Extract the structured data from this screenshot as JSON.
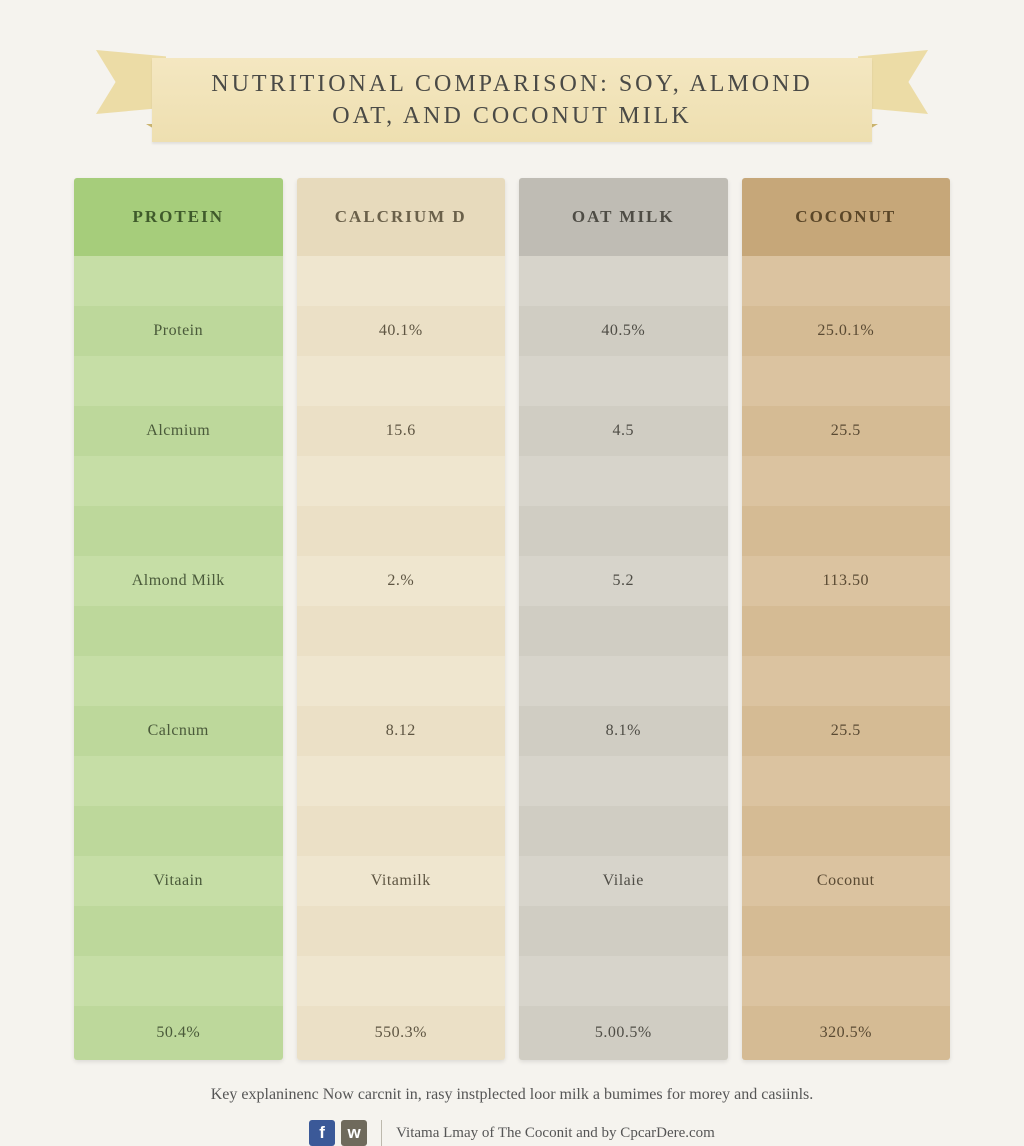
{
  "title": "NUTRITIONAL COMPARISON:  SOY, ALMOND\nOAT, AND COCONUT MILK",
  "columns": [
    {
      "header": "PROTEIN",
      "header_bg": "#a6cd7b",
      "header_color": "#3f5a2b",
      "stripe_a": "#c6dea6",
      "stripe_b": "#bdd89b",
      "text_color": "#4a5a3a",
      "cells": [
        "",
        "Protein",
        "",
        "Alcmium",
        "",
        "",
        "Almond Milk",
        "",
        "",
        "Calcnum",
        "",
        "",
        "Vitaain",
        "",
        "",
        "50.4%"
      ]
    },
    {
      "header": "CALCRIUM D",
      "header_bg": "#e7dabc",
      "header_color": "#6a604a",
      "stripe_a": "#efe6cf",
      "stripe_b": "#ebe0c6",
      "text_color": "#5e5542",
      "cells": [
        "",
        "40.1%",
        "",
        "15.6",
        "",
        "",
        "2.%",
        "",
        "",
        "8.12",
        "",
        "",
        "Vitamilk",
        "",
        "",
        "550.3%"
      ]
    },
    {
      "header": "OAT MILK",
      "header_bg": "#bfbcb4",
      "header_color": "#4e4c45",
      "stripe_a": "#d7d4cb",
      "stripe_b": "#d0cdc3",
      "text_color": "#4f4d46",
      "cells": [
        "",
        "40.5%",
        "",
        "4.5",
        "",
        "",
        "5.2",
        "",
        "",
        "8.1%",
        "",
        "",
        "Vilaie",
        "",
        "",
        "5.00.5%"
      ]
    },
    {
      "header": "COCONUT",
      "header_bg": "#c6a779",
      "header_color": "#5a4628",
      "stripe_a": "#dbc3a0",
      "stripe_b": "#d5bb94",
      "text_color": "#5a4a33",
      "cells": [
        "",
        "25.0.1%",
        "",
        "25.5",
        "",
        "",
        "113.50",
        "",
        "",
        "25.5",
        "",
        "",
        "Coconut",
        "",
        "",
        "320.5%"
      ]
    }
  ],
  "tall_rows": [
    15
  ],
  "footer_note": "Key explaninenc Now carcnit in, rasy instplected loor milk a bumimes for morey and casiinls.",
  "credits_text": "Vitama Lmay of The Coconit and by CpcarDere.com",
  "social": [
    {
      "label": "f",
      "class": ""
    },
    {
      "label": "w",
      "class": "alt"
    }
  ],
  "background_color": "#f5f3ee",
  "ribbon_bg_top": "#f4e7c1",
  "ribbon_bg_bottom": "#eedfb0"
}
